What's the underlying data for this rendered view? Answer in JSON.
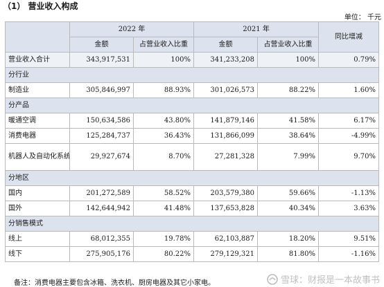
{
  "title": "（1） 营业收入构成",
  "unit": "单位： 千元",
  "headers": {
    "year_2022": "2022 年",
    "year_2021": "2021 年",
    "yoy": "同比增减",
    "amount": "金额",
    "ratio": "占营业收入比重"
  },
  "total": {
    "label": "营业收入合计",
    "a2022": "343,917,531",
    "r2022": "100%",
    "a2021": "341,233,208",
    "r2021": "100%",
    "yoy": "0.79%"
  },
  "sec_industry": "分行业",
  "industry": [
    {
      "label": "制造业",
      "a2022": "305,846,997",
      "r2022": "88.93%",
      "a2021": "301,026,573",
      "r2021": "88.22%",
      "yoy": "1.60%"
    }
  ],
  "sec_product": "分产品",
  "product": [
    {
      "label": "暖通空调",
      "a2022": "150,634,586",
      "r2022": "43.80%",
      "a2021": "141,879,146",
      "r2021": "41.58%",
      "yoy": "6.17%"
    },
    {
      "label": "消费电器",
      "a2022": "125,284,737",
      "r2022": "36.43%",
      "a2021": "131,866,099",
      "r2021": "38.64%",
      "yoy": "-4.99%"
    },
    {
      "label": "机器人及自动化系统",
      "a2022": "29,927,674",
      "r2022": "8.70%",
      "a2021": "27,281,328",
      "r2021": "7.99%",
      "yoy": "9.70%"
    }
  ],
  "sec_region": "分地区",
  "region": [
    {
      "label": "国内",
      "a2022": "201,272,589",
      "r2022": "58.52%",
      "a2021": "203,579,380",
      "r2021": "59.66%",
      "yoy": "-1.13%"
    },
    {
      "label": "国外",
      "a2022": "142,644,942",
      "r2022": "41.48%",
      "a2021": "137,653,828",
      "r2021": "40.34%",
      "yoy": "3.63%"
    }
  ],
  "sec_sales": "分销售模式",
  "sales": [
    {
      "label": "线上",
      "a2022": "68,012,355",
      "r2022": "19.78%",
      "a2021": "62,103,887",
      "r2021": "18.20%",
      "yoy": "9.51%"
    },
    {
      "label": "线下",
      "a2022": "275,905,176",
      "r2022": "80.22%",
      "a2021": "279,129,321",
      "r2021": "81.80%",
      "yoy": "-1.16%"
    }
  ],
  "note": "备注：消费电器主要包含冰箱、洗衣机、厨房电器及其它小家电。",
  "watermark": "雪球：财报是一本故事书"
}
